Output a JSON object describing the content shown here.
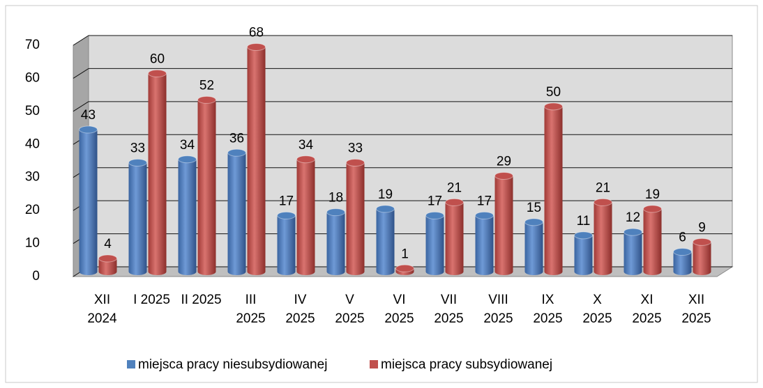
{
  "chart_data": {
    "type": "bar3d",
    "categories": [
      "XII 2024",
      "I 2025",
      "II 2025",
      "III 2025",
      "IV 2025",
      "V 2025",
      "VI 2025",
      "VII 2025",
      "VIII 2025",
      "IX 2025",
      "X 2025",
      "XI 2025",
      "XII 2025"
    ],
    "series": [
      {
        "name": "miejsca pracy niesubsydiowanej",
        "color": "#4f81bd",
        "values": [
          43,
          33,
          34,
          36,
          17,
          18,
          19,
          17,
          17,
          15,
          11,
          12,
          6
        ]
      },
      {
        "name": "miejsca pracy subsydiowanej",
        "color": "#c0504d",
        "values": [
          4,
          60,
          52,
          68,
          34,
          33,
          1,
          21,
          29,
          50,
          21,
          19,
          9
        ]
      }
    ],
    "ylim": [
      0,
      70
    ],
    "yticks": [
      0,
      10,
      20,
      30,
      40,
      50,
      60,
      70
    ],
    "grid": true,
    "legend": "bottom"
  }
}
